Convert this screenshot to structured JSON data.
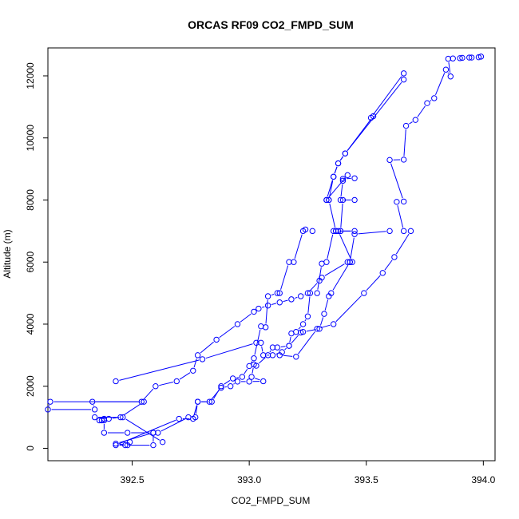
{
  "chart_data": {
    "type": "line",
    "title": "ORCAS RF09 CO2_FMPD_SUM",
    "xlabel": "CO2_FMPD_SUM",
    "ylabel": "Altitude (m)",
    "xlim": [
      392.14,
      394.05
    ],
    "ylim": [
      -400,
      12900
    ],
    "x_ticks": [
      392.5,
      393.0,
      393.5,
      394.0
    ],
    "x_tick_labels": [
      "392.5",
      "393.0",
      "393.5",
      "394.0"
    ],
    "y_ticks": [
      0,
      2000,
      4000,
      6000,
      8000,
      10000,
      12000
    ],
    "y_tick_labels": [
      "0",
      "2000",
      "4000",
      "6000",
      "8000",
      "10000",
      "12000"
    ],
    "grid": false,
    "marker": "open-circle",
    "line_color": "#0000ff",
    "series": [
      {
        "x": [
          393.99,
          393.98,
          393.95,
          393.94,
          393.91,
          393.9,
          393.87,
          393.85,
          393.86,
          393.84,
          393.79,
          393.76,
          393.71,
          393.67,
          393.66,
          393.6,
          393.66,
          393.63,
          393.66,
          393.69,
          393.62,
          393.57,
          393.49,
          393.36,
          393.29,
          393.2,
          393.13
        ],
        "y": [
          12620,
          12600,
          12590,
          12590,
          12580,
          12570,
          12560,
          12550,
          11980,
          12200,
          11280,
          11120,
          10580,
          10390,
          9300,
          9290,
          7950,
          7940,
          7000,
          7000,
          6160,
          5650,
          5000,
          4000,
          3850,
          2950,
          3000
        ]
      },
      {
        "x": [
          393.66,
          393.52,
          393.53,
          393.41,
          393.38,
          393.36,
          393.34,
          393.33,
          393.42,
          393.45,
          393.4,
          393.4,
          393.39,
          393.45,
          393.4,
          393.39,
          393.45,
          393.37,
          393.38,
          393.44,
          393.43,
          393.35,
          393.34,
          393.32,
          393.3,
          393.23,
          393.22,
          393.17,
          393.14,
          393.1,
          393.06,
          393.05,
          393.03,
          392.8,
          392.43
        ],
        "y": [
          12080,
          10650,
          10700,
          9500,
          9180,
          8750,
          8000,
          8000,
          8800,
          8700,
          8680,
          8620,
          8000,
          8000,
          8000,
          7000,
          7000,
          7000,
          7000,
          6000,
          6000,
          5000,
          4900,
          4330,
          3850,
          3750,
          3730,
          3300,
          3100,
          3000,
          3000,
          3400,
          3400,
          2870,
          2160
        ]
      },
      {
        "x": [
          393.66,
          393.41,
          393.38,
          393.36,
          393.33,
          393.34,
          393.37,
          393.39,
          393.36,
          393.33,
          393.31,
          393.29,
          393.26,
          393.25,
          393.23,
          393.2,
          393.18,
          393.17,
          393.12,
          393.1,
          393.08,
          393.03,
          393.02,
          393.01,
          393.06,
          393.0,
          392.95,
          392.92,
          392.88,
          392.83,
          392.78,
          392.76,
          392.7,
          392.43,
          392.48,
          392.43,
          392.59,
          392.48,
          392.38,
          392.38,
          392.36,
          392.38,
          392.37
        ],
        "y": [
          11880,
          9500,
          9180,
          8750,
          8000,
          8000,
          7000,
          7000,
          7000,
          6000,
          5950,
          5000,
          5000,
          4250,
          4000,
          3750,
          3700,
          3300,
          3250,
          3250,
          3000,
          2660,
          2700,
          2300,
          2160,
          2150,
          2150,
          2000,
          1950,
          1500,
          1500,
          950,
          950,
          100,
          100,
          150,
          500,
          500,
          500,
          900,
          900,
          950,
          900
        ]
      },
      {
        "x": [
          393.27,
          393.24,
          393.23,
          393.19,
          393.17,
          393.13,
          393.12,
          393.08,
          393.07,
          393.05,
          393.02,
          393.0,
          392.97,
          392.93,
          392.88,
          392.84,
          392.78,
          392.77,
          392.74,
          392.61,
          392.59,
          392.59,
          392.47,
          392.49
        ],
        "y": [
          7000,
          7050,
          7000,
          6000,
          6000,
          5000,
          5000,
          4900,
          3900,
          3930,
          2900,
          2650,
          2300,
          2250,
          2000,
          1500,
          1500,
          1000,
          1000,
          500,
          500,
          100,
          100,
          200
        ]
      },
      {
        "x": [
          393.6,
          393.45,
          393.43,
          393.42,
          393.31,
          393.3,
          393.25,
          393.22,
          393.18,
          393.13,
          393.08,
          393.04,
          393.02,
          392.95,
          392.86,
          392.78,
          392.76,
          392.69,
          392.6,
          392.54,
          392.15,
          392.14,
          392.34,
          392.33,
          392.55,
          392.45,
          392.4,
          392.34,
          392.46,
          392.63
        ],
        "y": [
          7000,
          6900,
          6000,
          6000,
          5500,
          5400,
          5000,
          4900,
          4800,
          4700,
          4600,
          4500,
          4400,
          4000,
          3500,
          3000,
          2500,
          2160,
          2000,
          1500,
          1500,
          1250,
          1250,
          1500,
          1500,
          1000,
          950,
          1000,
          1000,
          200
        ]
      }
    ]
  }
}
